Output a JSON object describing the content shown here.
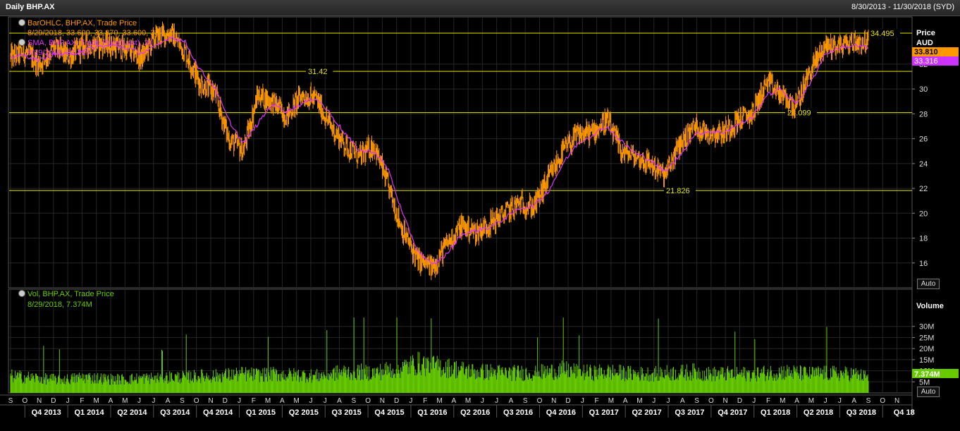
{
  "window": {
    "title": "Daily BHP.AX",
    "date_range": "8/30/2013 - 11/30/2018 (SYD)"
  },
  "price_panel": {
    "axis_title": "Price",
    "currency": "AUD",
    "legend_ohlc_title": "BarOHLC, BHP.AX, Trade Price",
    "legend_ohlc_values": "8/29/2018, 33.600, 33.870, 33.600, 33.810",
    "legend_sma_title": "SMA, BHP.AX, Trade Price(Last), 20",
    "legend_sma_values": "8/29/2018, 33.316",
    "last_price_tag": "33.810",
    "sma_tag": "33.316",
    "auto_button": "Auto",
    "colors": {
      "bars": "#ff9900",
      "sma": "#dd33ff",
      "lines": "#e6e600",
      "grid": "#262626"
    }
  },
  "volume_panel": {
    "axis_title": "Volume",
    "legend_title": "Vol, BHP.AX, Trade Price",
    "legend_values": "8/29/2018, 7.374M",
    "last_volume_tag": "7.374M",
    "auto_button": "Auto",
    "color": "#66cc00"
  },
  "chart_data": [
    {
      "type": "bar",
      "chart_kind": "OHLC price with 20-day SMA",
      "y_ticks": [
        16,
        18,
        20,
        22,
        24,
        26,
        28,
        30,
        32
      ],
      "ylim": [
        14,
        35.8
      ],
      "horizontal_lines": [
        {
          "value": 34.495,
          "label": "34.495"
        },
        {
          "value": 31.42,
          "label": "31.42"
        },
        {
          "value": 28.099,
          "label": "28.099"
        },
        {
          "value": 21.826,
          "label": "21.826"
        }
      ],
      "series": [
        {
          "name": "BarOHLC",
          "x": [
            "2013-09",
            "2013-10",
            "2013-11",
            "2013-12",
            "2014-01",
            "2014-02",
            "2014-03",
            "2014-04",
            "2014-05",
            "2014-06",
            "2014-07",
            "2014-08",
            "2014-09",
            "2014-10",
            "2014-11",
            "2014-12",
            "2015-01",
            "2015-02",
            "2015-03",
            "2015-04",
            "2015-05",
            "2015-06",
            "2015-07",
            "2015-08",
            "2015-09",
            "2015-10",
            "2015-11",
            "2015-12",
            "2016-01",
            "2016-02",
            "2016-03",
            "2016-04",
            "2016-05",
            "2016-06",
            "2016-07",
            "2016-08",
            "2016-09",
            "2016-10",
            "2016-11",
            "2016-12",
            "2017-01",
            "2017-02",
            "2017-03",
            "2017-04",
            "2017-05",
            "2017-06",
            "2017-07",
            "2017-08",
            "2017-09",
            "2017-10",
            "2017-11",
            "2017-12",
            "2018-01",
            "2018-02",
            "2018-03",
            "2018-04",
            "2018-05",
            "2018-06",
            "2018-07",
            "2018-08"
          ],
          "values": [
            32.5,
            33.0,
            32.0,
            33.3,
            32.6,
            33.5,
            33.6,
            33.5,
            33.2,
            32.5,
            34.2,
            34.5,
            33.0,
            30.5,
            29.8,
            26.0,
            25.0,
            29.5,
            29.0,
            27.8,
            29.5,
            29.2,
            27.0,
            25.5,
            24.5,
            25.5,
            22.0,
            18.5,
            16.2,
            15.6,
            17.5,
            19.0,
            18.5,
            19.2,
            20.0,
            20.8,
            20.5,
            22.8,
            25.0,
            26.3,
            26.5,
            27.5,
            25.0,
            24.5,
            24.0,
            23.0,
            25.5,
            27.0,
            26.5,
            26.5,
            27.5,
            28.0,
            30.5,
            29.5,
            28.5,
            31.5,
            33.5,
            33.5,
            33.8,
            33.81
          ]
        },
        {
          "name": "SMA(20)",
          "x": [
            "2013-09",
            "2013-10",
            "2013-11",
            "2013-12",
            "2014-01",
            "2014-02",
            "2014-03",
            "2014-04",
            "2014-05",
            "2014-06",
            "2014-07",
            "2014-08",
            "2014-09",
            "2014-10",
            "2014-11",
            "2014-12",
            "2015-01",
            "2015-02",
            "2015-03",
            "2015-04",
            "2015-05",
            "2015-06",
            "2015-07",
            "2015-08",
            "2015-09",
            "2015-10",
            "2015-11",
            "2015-12",
            "2016-01",
            "2016-02",
            "2016-03",
            "2016-04",
            "2016-05",
            "2016-06",
            "2016-07",
            "2016-08",
            "2016-09",
            "2016-10",
            "2016-11",
            "2016-12",
            "2017-01",
            "2017-02",
            "2017-03",
            "2017-04",
            "2017-05",
            "2017-06",
            "2017-07",
            "2017-08",
            "2017-09",
            "2017-10",
            "2017-11",
            "2017-12",
            "2018-01",
            "2018-02",
            "2018-03",
            "2018-04",
            "2018-05",
            "2018-06",
            "2018-07",
            "2018-08"
          ],
          "values": [
            32.6,
            32.7,
            32.3,
            32.8,
            32.8,
            33.1,
            33.4,
            33.5,
            33.3,
            32.9,
            33.4,
            34.2,
            33.8,
            31.6,
            30.2,
            27.5,
            25.6,
            27.2,
            28.8,
            28.2,
            28.8,
            29.3,
            28.0,
            26.4,
            25.0,
            25.0,
            23.5,
            19.8,
            17.0,
            15.8,
            16.7,
            18.3,
            18.6,
            18.9,
            19.6,
            20.4,
            20.6,
            21.8,
            24.0,
            25.6,
            26.3,
            27.0,
            25.8,
            24.8,
            24.3,
            23.3,
            24.6,
            26.3,
            26.6,
            26.5,
            27.1,
            27.7,
            29.5,
            30.0,
            28.8,
            30.4,
            32.8,
            33.3,
            33.5,
            33.316
          ]
        }
      ]
    },
    {
      "type": "bar",
      "chart_kind": "volume",
      "y_tick_labels": [
        "5M",
        "10M",
        "15M",
        "20M",
        "25M",
        "30M"
      ],
      "ylim": [
        0,
        35
      ],
      "x": [
        "2013-09",
        "2013-10",
        "2013-11",
        "2013-12",
        "2014-01",
        "2014-02",
        "2014-03",
        "2014-04",
        "2014-05",
        "2014-06",
        "2014-07",
        "2014-08",
        "2014-09",
        "2014-10",
        "2014-11",
        "2014-12",
        "2015-01",
        "2015-02",
        "2015-03",
        "2015-04",
        "2015-05",
        "2015-06",
        "2015-07",
        "2015-08",
        "2015-09",
        "2015-10",
        "2015-11",
        "2015-12",
        "2016-01",
        "2016-02",
        "2016-03",
        "2016-04",
        "2016-05",
        "2016-06",
        "2016-07",
        "2016-08",
        "2016-09",
        "2016-10",
        "2016-11",
        "2016-12",
        "2017-01",
        "2017-02",
        "2017-03",
        "2017-04",
        "2017-05",
        "2017-06",
        "2017-07",
        "2017-08",
        "2017-09",
        "2017-10",
        "2017-11",
        "2017-12",
        "2018-01",
        "2018-02",
        "2018-03",
        "2018-04",
        "2018-05",
        "2018-06",
        "2018-07",
        "2018-08"
      ],
      "values_millions": [
        8,
        7.5,
        7,
        6.5,
        6.5,
        7.5,
        7,
        6.5,
        6.5,
        7,
        7,
        7.5,
        7.5,
        8,
        8,
        8.5,
        9,
        8.5,
        9,
        8.5,
        8.5,
        8,
        9,
        10,
        10,
        9.5,
        11,
        12,
        14,
        13,
        12,
        11,
        10,
        10,
        9.5,
        9.5,
        9.5,
        10,
        11,
        10,
        9.5,
        10,
        9.5,
        9,
        9,
        9.5,
        9.5,
        10,
        9,
        9,
        9,
        9,
        9.5,
        10,
        9.5,
        9,
        9.5,
        9,
        9,
        7.374
      ]
    }
  ],
  "x_axis": {
    "month_letters": [
      "S",
      "O",
      "N",
      "D",
      "J",
      "F",
      "M",
      "A",
      "M",
      "J",
      "J",
      "A",
      "S",
      "O",
      "N",
      "D",
      "J",
      "F",
      "M",
      "A",
      "M",
      "J",
      "J",
      "A",
      "S",
      "O",
      "N",
      "D",
      "J",
      "F",
      "M",
      "A",
      "M",
      "J",
      "J",
      "A",
      "S",
      "O",
      "N",
      "D",
      "J",
      "F",
      "M",
      "A",
      "M",
      "J",
      "J",
      "A",
      "S",
      "O",
      "N",
      "D",
      "J",
      "F",
      "M",
      "A",
      "M",
      "J",
      "J",
      "A",
      "S",
      "O",
      "N"
    ],
    "quarters": [
      "Q4 2013",
      "Q1 2014",
      "Q2 2014",
      "Q3 2014",
      "Q4 2014",
      "Q1 2015",
      "Q2 2015",
      "Q3 2015",
      "Q4 2015",
      "Q1 2016",
      "Q2 2016",
      "Q3 2016",
      "Q4 2016",
      "Q1 2017",
      "Q2 2017",
      "Q3 2017",
      "Q4 2017",
      "Q1 2018",
      "Q2 2018",
      "Q3 2018",
      "Q4 18"
    ]
  }
}
